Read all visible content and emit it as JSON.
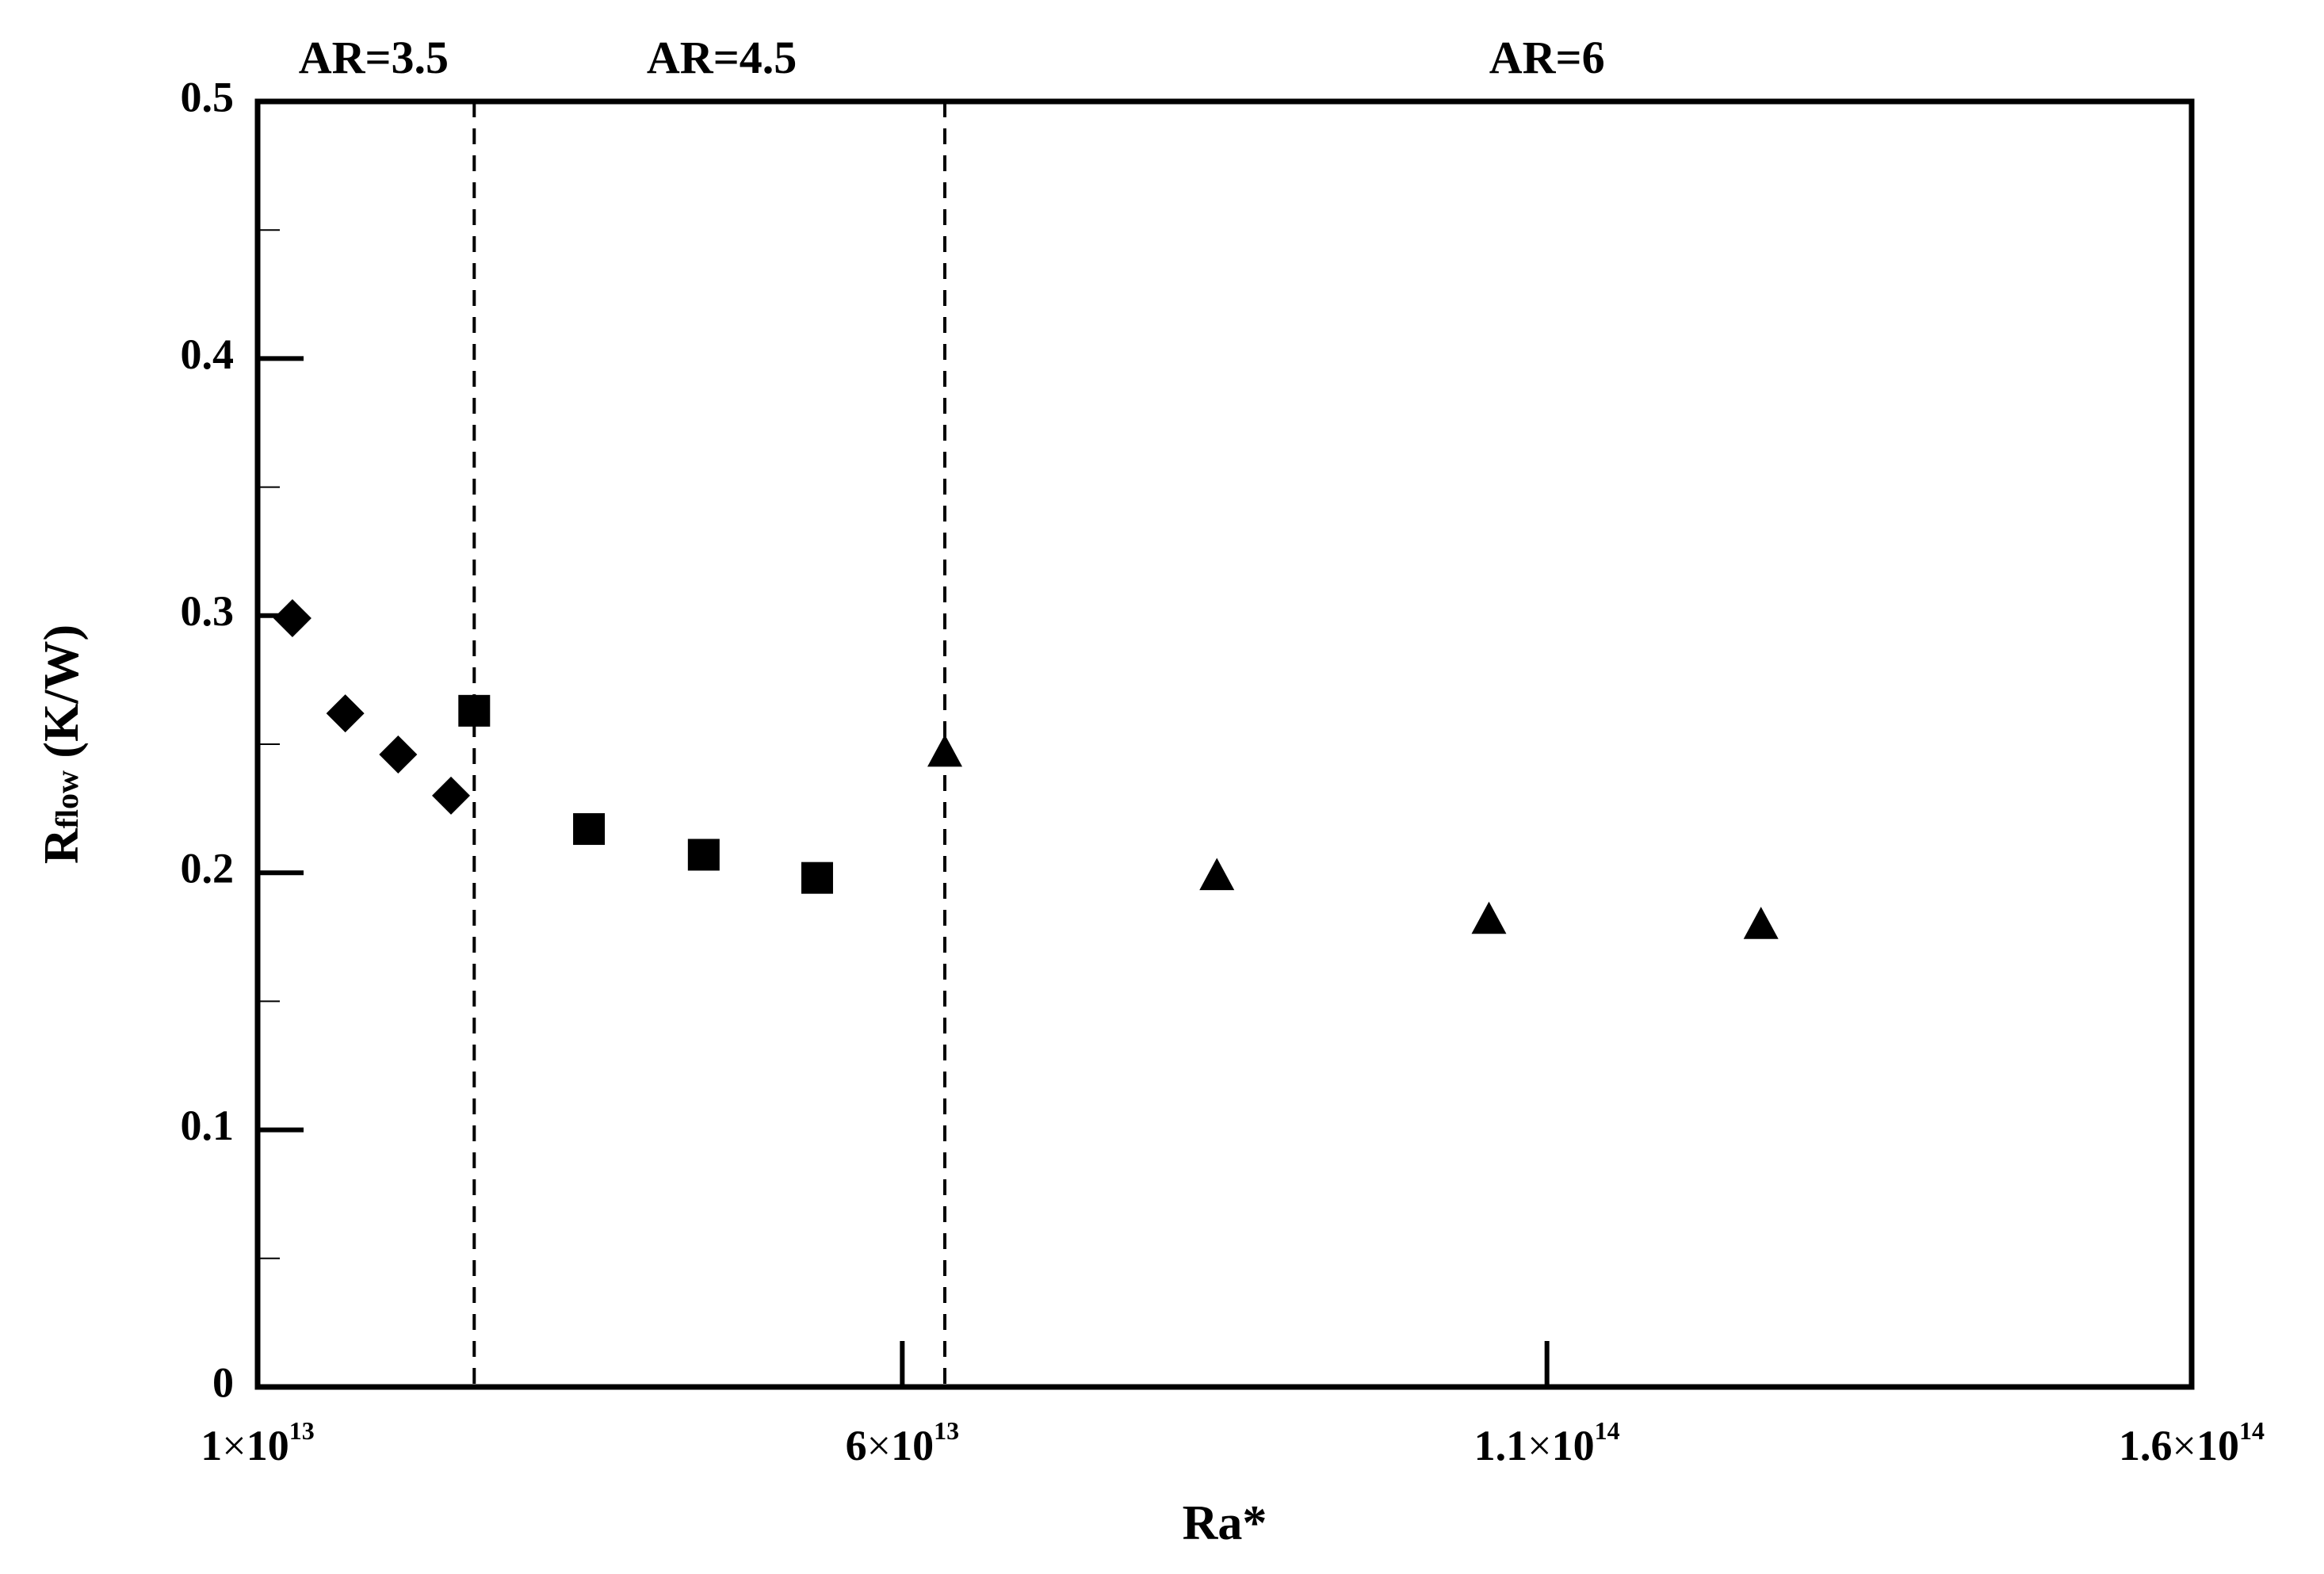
{
  "chart_data": {
    "type": "scatter",
    "xlabel": "Ra*",
    "ylabel": {
      "main": "R",
      "sub": "flow",
      "unit": " (K/W)"
    },
    "xlim": [
      10000000000000.0,
      160000000000000.0
    ],
    "ylim": [
      0,
      0.5
    ],
    "x_ticks": [
      {
        "value": 10000000000000.0,
        "mantissa": "1",
        "times": "×",
        "base": "10",
        "exponent": "13"
      },
      {
        "value": 60000000000000.0,
        "mantissa": "6",
        "times": "×",
        "base": "10",
        "exponent": "13"
      },
      {
        "value": 110000000000000.0,
        "mantissa": "1.1",
        "times": "×",
        "base": "10",
        "exponent": "14"
      },
      {
        "value": 160000000000000.0,
        "mantissa": "1.6",
        "times": "×",
        "base": "10",
        "exponent": "14"
      }
    ],
    "y_ticks": [
      {
        "value": 0,
        "label": "0"
      },
      {
        "value": 0.1,
        "label": "0.1"
      },
      {
        "value": 0.2,
        "label": "0.2"
      },
      {
        "value": 0.3,
        "label": "0.3"
      },
      {
        "value": 0.4,
        "label": "0.4"
      },
      {
        "value": 0.5,
        "label": "0.5"
      }
    ],
    "y_minor_ticks": [
      0.05,
      0.15,
      0.25,
      0.35,
      0.45
    ],
    "grid": false,
    "legend": "none",
    "regions": [
      {
        "label": "AR=3.5",
        "label_x": 19000000000000.0
      },
      {
        "label": "AR=4.5",
        "label_x": 46000000000000.0
      },
      {
        "label": "AR=6",
        "label_x": 110000000000000.0
      }
    ],
    "dividers": [
      26800000000000.0,
      63300000000000.0
    ],
    "series": [
      {
        "marker": "diamond",
        "x": [
          12700000000000.0,
          16800000000000.0,
          20900000000000.0,
          25000000000000.0
        ],
        "y": [
          0.299,
          0.262,
          0.246,
          0.23
        ]
      },
      {
        "marker": "square",
        "x": [
          26800000000000.0,
          35700000000000.0,
          44600000000000.0,
          53400000000000.0
        ],
        "y": [
          0.263,
          0.217,
          0.207,
          0.198
        ]
      },
      {
        "marker": "triangle",
        "x": [
          63300000000000.0,
          84400000000000.0,
          105500000000000.0,
          126600000000000.0
        ],
        "y": [
          0.247,
          0.199,
          0.182,
          0.18
        ]
      }
    ]
  }
}
